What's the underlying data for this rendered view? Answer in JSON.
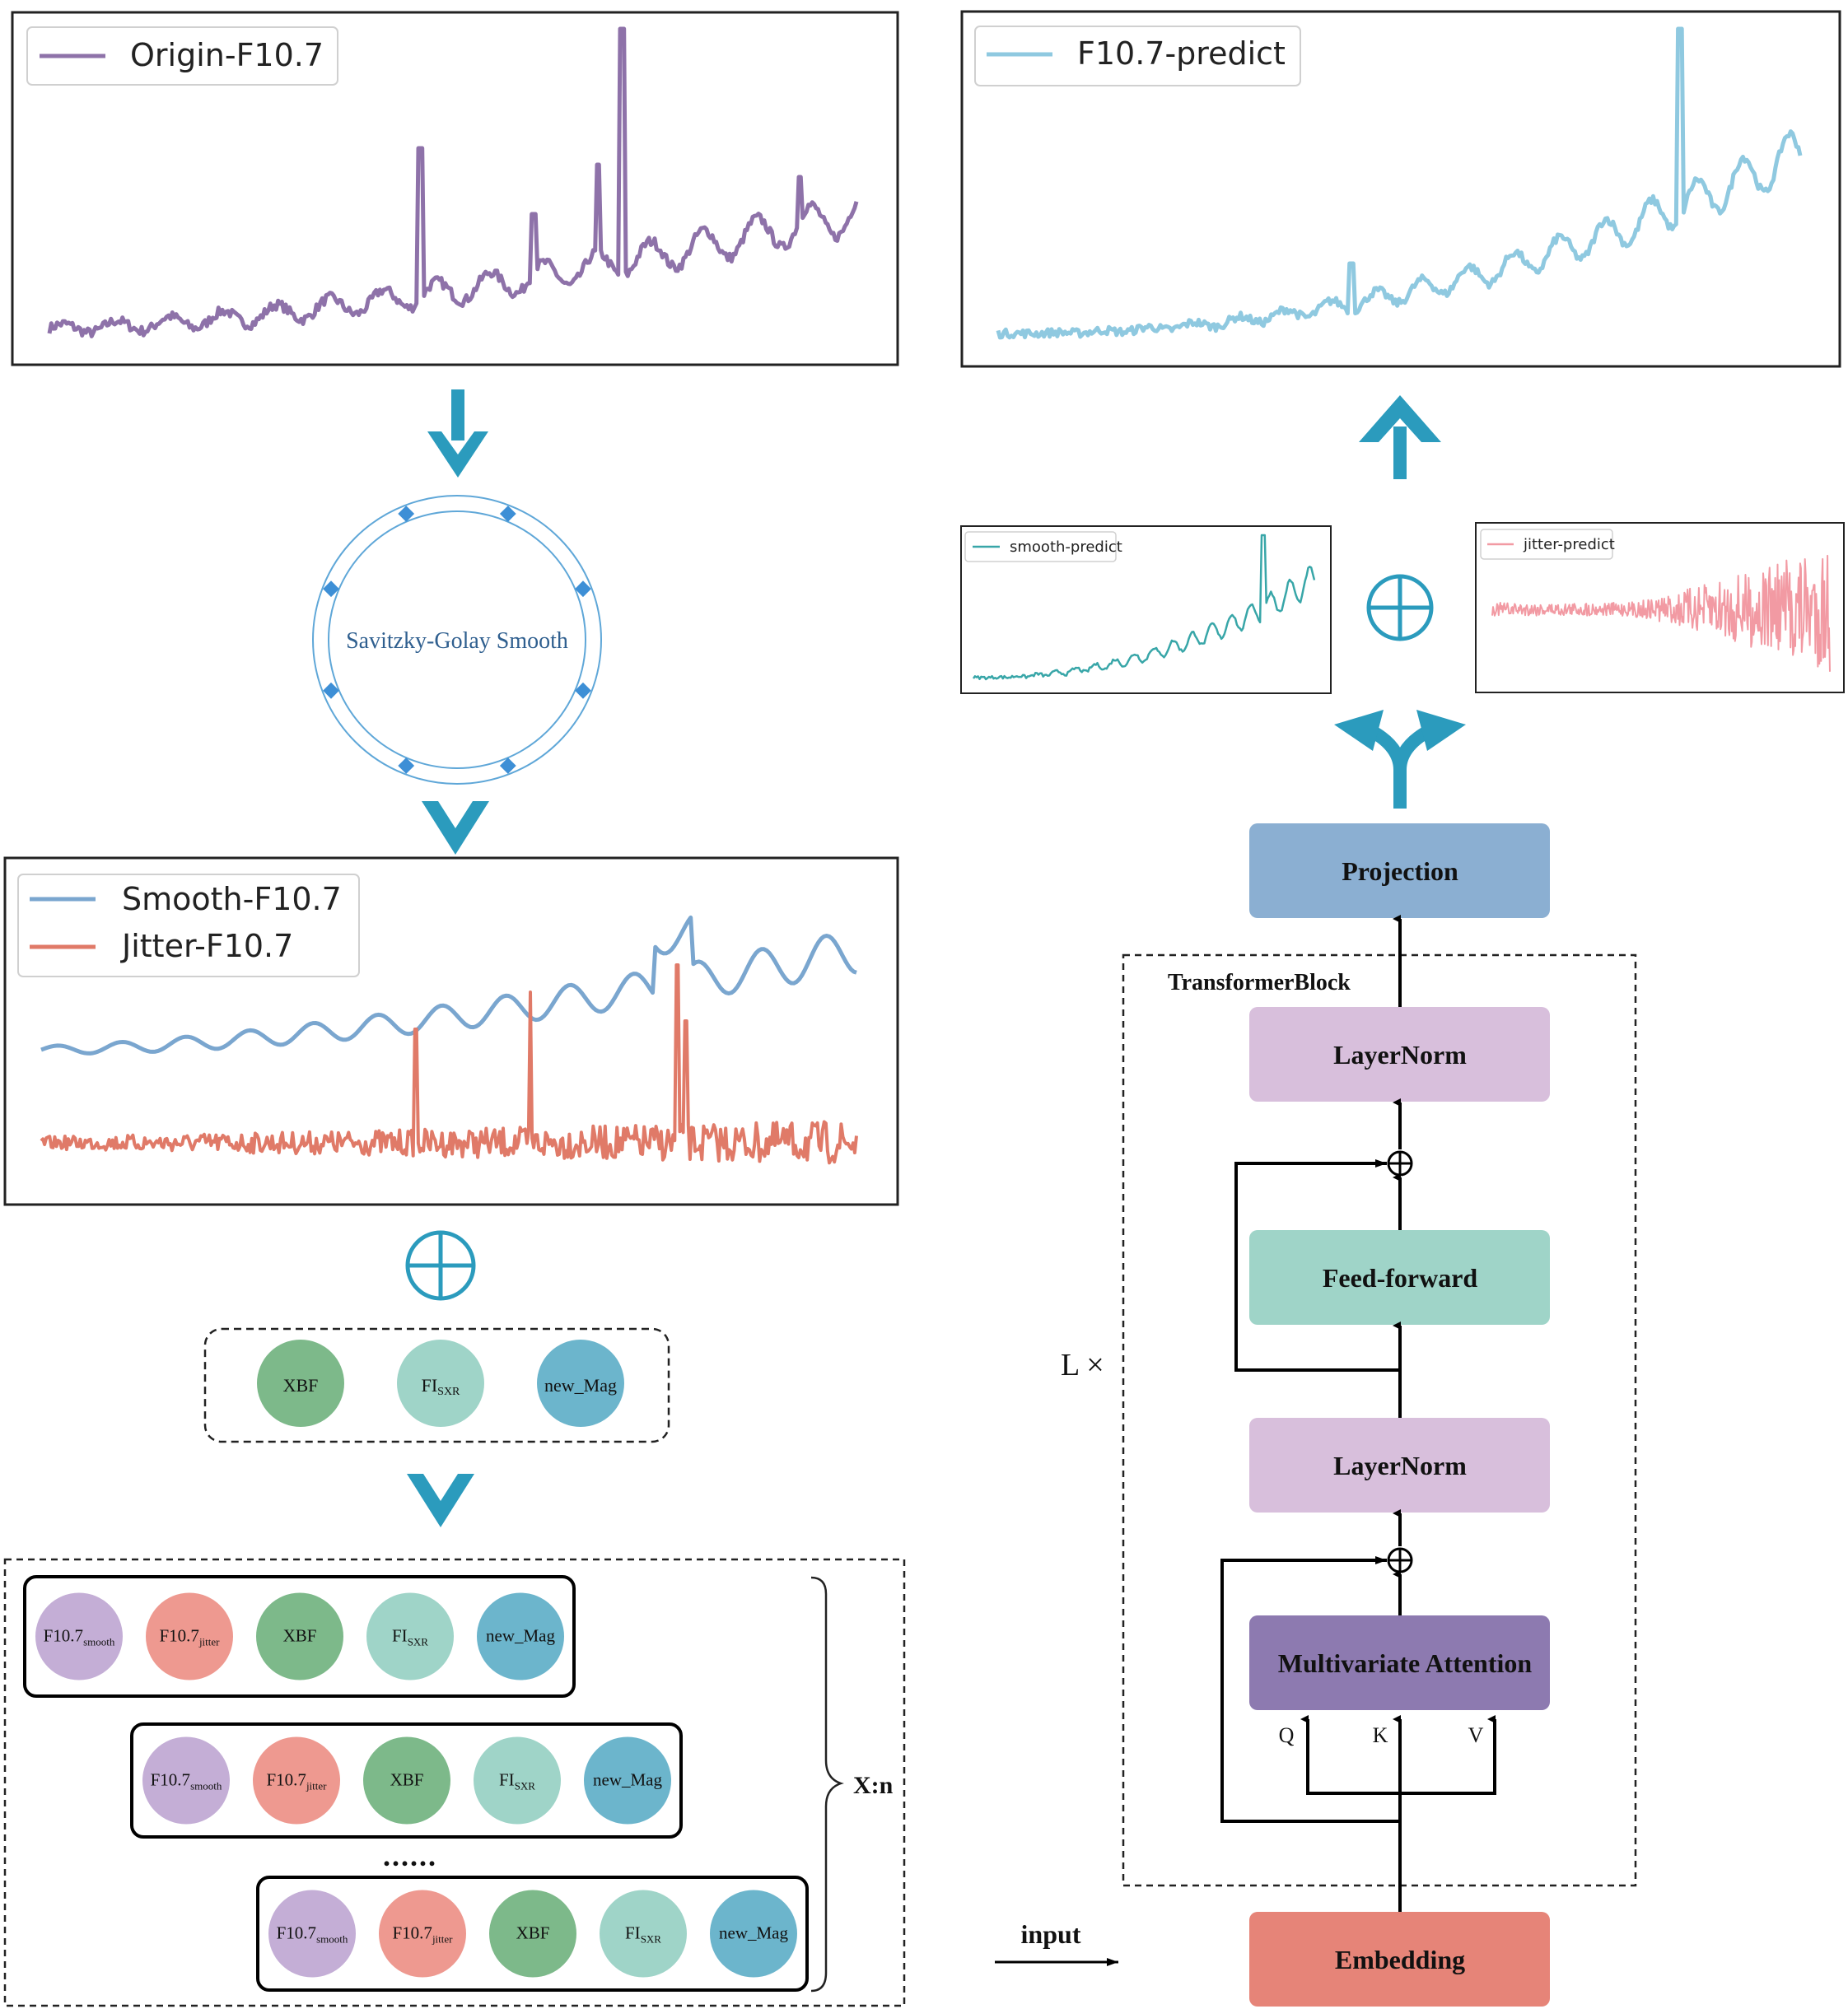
{
  "charts": {
    "origin": {
      "legend": "Origin-F10.7",
      "color": "#8e72a9"
    },
    "smooth_jitter": {
      "legend_smooth": "Smooth-F10.7",
      "legend_jitter": "Jitter-F10.7",
      "color_smooth": "#7aa6cf",
      "color_jitter": "#e07a68"
    },
    "predict": {
      "legend": "F10.7-predict",
      "color": "#8fc9e0"
    },
    "smooth_predict": {
      "legend": "smooth-predict",
      "color": "#38a6a8"
    },
    "jitter_predict": {
      "legend": "jitter-predict",
      "color": "#f29aa3"
    }
  },
  "left": {
    "sg_label": "Savitzky-Golay Smooth",
    "features": {
      "xbf": "XBF",
      "fi": "FI",
      "fi_sub": "SXR",
      "mag": "new_Mag"
    },
    "rows": {
      "f107": "F10.7",
      "smooth_sub": "smooth",
      "jitter_sub": "jitter",
      "xbf": "XBF",
      "fi": "FI",
      "fi_sub": "SXR",
      "mag": "new_Mag"
    },
    "ellipsis": "......",
    "xn": "X:n"
  },
  "right": {
    "projection": "Projection",
    "block_title": "TransformerBlock",
    "layernorm_top": "LayerNorm",
    "feedforward": "Feed-forward",
    "layernorm_bottom": "LayerNorm",
    "attention": "Multivariate Attention",
    "q": "Q",
    "k": "K",
    "v": "V",
    "lx": "L ×",
    "embedding": "Embedding",
    "input": "input"
  },
  "colors": {
    "arrow": "#2b9bbd",
    "projection": "#8bafd2",
    "layernorm": "#d8bfdc",
    "feedforward": "#9fd4c8",
    "attention": "#8d7ab0",
    "embedding": "#e68478",
    "circle_smooth": "#c4aed6",
    "circle_jitter": "#ee9990",
    "circle_xbf": "#7db98a",
    "circle_fi": "#9fd4c8",
    "circle_mag": "#6cb5cc"
  }
}
